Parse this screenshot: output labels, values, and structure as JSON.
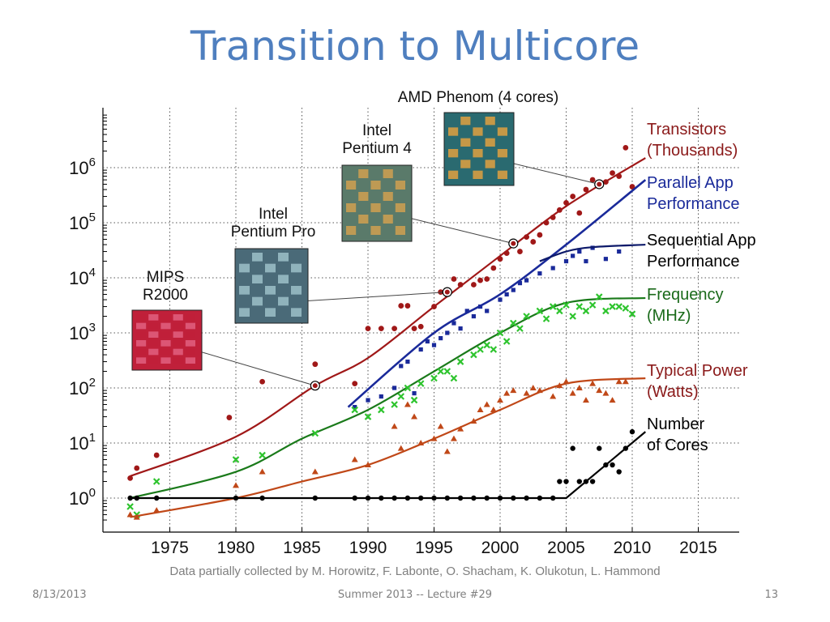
{
  "slide": {
    "title": "Transition to Multicore",
    "credit": "Data partially collected by M. Horowitz, F. Labonte, O. Shacham, K. Olukotun, L. Hammond",
    "footer_date": "8/13/2013",
    "footer_center": "Summer 2013 -- Lecture #29",
    "footer_page": "13"
  },
  "chips": [
    {
      "name_lines": [
        "MIPS",
        "R2000"
      ],
      "year": 1986,
      "transistors": 110,
      "die_color": "#c0203a",
      "die_color2": "#e06080"
    },
    {
      "name_lines": [
        "Intel",
        "Pentium Pro"
      ],
      "year": 1996,
      "transistors": 5500,
      "die_color": "#4a6a78",
      "die_color2": "#9cc0c8"
    },
    {
      "name_lines": [
        "Intel",
        "Pentium 4"
      ],
      "year": 2001,
      "transistors": 42000,
      "die_color": "#5a7a6a",
      "die_color2": "#d0a050"
    },
    {
      "name_lines": [
        "AMD Phenom (4 cores)"
      ],
      "year": 2007.5,
      "transistors": 500000,
      "die_color": "#2a6a70",
      "die_color2": "#e0a040"
    }
  ],
  "chart_data": {
    "type": "scatter",
    "xlabel": "",
    "ylabel": "",
    "xlim": [
      1970,
      2020
    ],
    "ylim": [
      0.3,
      2000000
    ],
    "yscale": "log",
    "x_ticks": [
      1975,
      1980,
      1985,
      1990,
      1995,
      2000,
      2005,
      2010,
      2015
    ],
    "y_ticks": [
      {
        "value": 1,
        "base": "10",
        "exp": "0"
      },
      {
        "value": 10,
        "base": "10",
        "exp": "1"
      },
      {
        "value": 100,
        "base": "10",
        "exp": "2"
      },
      {
        "value": 1000,
        "base": "10",
        "exp": "3"
      },
      {
        "value": 10000,
        "base": "10",
        "exp": "4"
      },
      {
        "value": 100000,
        "base": "10",
        "exp": "5"
      },
      {
        "value": 1000000,
        "base": "10",
        "exp": "6"
      }
    ],
    "grid": true,
    "legend_position": "right",
    "series": [
      {
        "key": "transistors",
        "name_lines": [
          "Transistors",
          "(Thousands)"
        ],
        "color": "#a01818",
        "text_color": "#8b1a1a",
        "marker": "circle",
        "trend": [
          [
            1972,
            2.5
          ],
          [
            1980,
            13
          ],
          [
            1986,
            110
          ],
          [
            1990,
            350
          ],
          [
            1995,
            3000
          ],
          [
            2000,
            25000
          ],
          [
            2005,
            200000
          ],
          [
            2011,
            1500000
          ]
        ],
        "points": [
          [
            1972,
            2.3
          ],
          [
            1972.5,
            3.5
          ],
          [
            1974,
            6
          ],
          [
            1979.5,
            29
          ],
          [
            1982,
            130
          ],
          [
            1986,
            270
          ],
          [
            1989,
            120
          ],
          [
            1990,
            1200
          ],
          [
            1991,
            1200
          ],
          [
            1992,
            1200
          ],
          [
            1992.5,
            3100
          ],
          [
            1993,
            3100
          ],
          [
            1993.5,
            1200
          ],
          [
            1994,
            1300
          ],
          [
            1995,
            3000
          ],
          [
            1995.5,
            5500
          ],
          [
            1996,
            5500
          ],
          [
            1996.5,
            9500
          ],
          [
            1997,
            7500
          ],
          [
            1998,
            7500
          ],
          [
            1998.5,
            9000
          ],
          [
            1999,
            9500
          ],
          [
            1999.5,
            15000
          ],
          [
            2000,
            22000
          ],
          [
            2000.5,
            28000
          ],
          [
            2001,
            42000
          ],
          [
            2001.5,
            30000
          ],
          [
            2002,
            55000
          ],
          [
            2002.5,
            45000
          ],
          [
            2003,
            60000
          ],
          [
            2003.5,
            100000
          ],
          [
            2004,
            125000
          ],
          [
            2004.5,
            170000
          ],
          [
            2005,
            230000
          ],
          [
            2005.5,
            300000
          ],
          [
            2006,
            150000
          ],
          [
            2006.5,
            400000
          ],
          [
            2007,
            600000
          ],
          [
            2007.5,
            500000
          ],
          [
            2008,
            550000
          ],
          [
            2008.5,
            800000
          ],
          [
            2009,
            700000
          ],
          [
            2009.5,
            2300000
          ],
          [
            2010,
            450000
          ]
        ]
      },
      {
        "key": "parallel",
        "name_lines": [
          "Parallel App",
          "Performance"
        ],
        "color": "#1a2a9a",
        "text_color": "#1a2a9a",
        "marker": "square",
        "trend": [
          [
            1988.5,
            45
          ],
          [
            1995,
            1000
          ],
          [
            2000,
            5000
          ],
          [
            2005,
            40000
          ],
          [
            2011,
            600000
          ]
        ],
        "points": [
          [
            1989,
            45
          ],
          [
            1990,
            60
          ],
          [
            1991,
            70
          ],
          [
            1992,
            100
          ],
          [
            1992.5,
            250
          ],
          [
            1993,
            300
          ],
          [
            1993.5,
            80
          ],
          [
            1994,
            500
          ],
          [
            1994.5,
            700
          ],
          [
            1995,
            600
          ],
          [
            1995.5,
            800
          ],
          [
            1996,
            1000
          ],
          [
            1996.5,
            1500
          ],
          [
            1997,
            1200
          ],
          [
            1997.5,
            2500
          ],
          [
            1998,
            2000
          ],
          [
            1998.5,
            3000
          ],
          [
            1999,
            2500
          ],
          [
            2000,
            4000
          ],
          [
            2000.5,
            5000
          ],
          [
            2001,
            6000
          ],
          [
            2001.5,
            8000
          ],
          [
            2002,
            9000
          ],
          [
            2003,
            12000
          ],
          [
            2004,
            15000
          ],
          [
            2005,
            20000
          ],
          [
            2005.5,
            25000
          ],
          [
            2006,
            30000
          ],
          [
            2006.5,
            20000
          ],
          [
            2007,
            35000
          ],
          [
            2008,
            22000
          ],
          [
            2009,
            30000
          ]
        ]
      },
      {
        "key": "sequential",
        "name_lines": [
          "Sequential App",
          "Performance"
        ],
        "color": "#0d1a6a",
        "text_color": "#000000",
        "marker": "none",
        "trend": [
          [
            2003,
            20000
          ],
          [
            2005,
            30000
          ],
          [
            2007,
            36000
          ],
          [
            2011,
            40000
          ]
        ],
        "points": []
      },
      {
        "key": "frequency",
        "name_lines": [
          "Frequency",
          "(MHz)"
        ],
        "color": "#1a7a1a",
        "text_color": "#1a6a1a",
        "marker": "x",
        "trend": [
          [
            1972,
            1
          ],
          [
            1980,
            3
          ],
          [
            1985,
            12
          ],
          [
            1990,
            40
          ],
          [
            1995,
            200
          ],
          [
            2000,
            1000
          ],
          [
            2005,
            3500
          ],
          [
            2011,
            4300
          ]
        ],
        "points": [
          [
            1972,
            0.7
          ],
          [
            1972.5,
            0.5
          ],
          [
            1974,
            2
          ],
          [
            1980,
            5
          ],
          [
            1982,
            6
          ],
          [
            1986,
            15
          ],
          [
            1989,
            40
          ],
          [
            1990,
            30
          ],
          [
            1991,
            40
          ],
          [
            1992,
            50
          ],
          [
            1992.5,
            70
          ],
          [
            1993,
            100
          ],
          [
            1993.5,
            60
          ],
          [
            1994,
            120
          ],
          [
            1995,
            150
          ],
          [
            1995.5,
            200
          ],
          [
            1996,
            200
          ],
          [
            1996.5,
            150
          ],
          [
            1997,
            300
          ],
          [
            1998,
            400
          ],
          [
            1998.5,
            500
          ],
          [
            1999,
            600
          ],
          [
            1999.5,
            500
          ],
          [
            2000,
            1000
          ],
          [
            2000.5,
            700
          ],
          [
            2001,
            1500
          ],
          [
            2001.5,
            1200
          ],
          [
            2002,
            2000
          ],
          [
            2003,
            2500
          ],
          [
            2003.5,
            1800
          ],
          [
            2004,
            3000
          ],
          [
            2004.5,
            2500
          ],
          [
            2005,
            3200
          ],
          [
            2005.5,
            2000
          ],
          [
            2006,
            3000
          ],
          [
            2006.5,
            2500
          ],
          [
            2007,
            3200
          ],
          [
            2007.5,
            4500
          ],
          [
            2008,
            2500
          ],
          [
            2008.5,
            3000
          ],
          [
            2009,
            3000
          ],
          [
            2009.5,
            2800
          ],
          [
            2010,
            2200
          ]
        ]
      },
      {
        "key": "power",
        "name_lines": [
          "Typical Power",
          "(Watts)"
        ],
        "color": "#c04818",
        "text_color": "#8b1a1a",
        "marker": "triangle",
        "trend": [
          [
            1972,
            0.45
          ],
          [
            1980,
            1
          ],
          [
            1985,
            2
          ],
          [
            1990,
            4
          ],
          [
            1995,
            12
          ],
          [
            2000,
            40
          ],
          [
            2005,
            120
          ],
          [
            2011,
            150
          ]
        ],
        "points": [
          [
            1972,
            0.5
          ],
          [
            1972.5,
            0.45
          ],
          [
            1974,
            0.6
          ],
          [
            1980,
            1.7
          ],
          [
            1982,
            3
          ],
          [
            1986,
            3
          ],
          [
            1989,
            5
          ],
          [
            1990,
            4
          ],
          [
            1992,
            20
          ],
          [
            1992.5,
            8
          ],
          [
            1993,
            50
          ],
          [
            1993.5,
            30
          ],
          [
            1994,
            10
          ],
          [
            1995,
            12
          ],
          [
            1995.5,
            20
          ],
          [
            1996,
            7
          ],
          [
            1996.5,
            12
          ],
          [
            1997,
            18
          ],
          [
            1998,
            25
          ],
          [
            1998.5,
            40
          ],
          [
            1999,
            50
          ],
          [
            1999.5,
            40
          ],
          [
            2000,
            60
          ],
          [
            2000.5,
            80
          ],
          [
            2001,
            90
          ],
          [
            2002,
            80
          ],
          [
            2002.5,
            100
          ],
          [
            2003,
            90
          ],
          [
            2004,
            70
          ],
          [
            2004.5,
            110
          ],
          [
            2005,
            130
          ],
          [
            2005.5,
            80
          ],
          [
            2006,
            100
          ],
          [
            2006.5,
            60
          ],
          [
            2007,
            120
          ],
          [
            2007.5,
            90
          ],
          [
            2008,
            80
          ],
          [
            2008.5,
            60
          ],
          [
            2009,
            130
          ],
          [
            2009.5,
            130
          ]
        ]
      },
      {
        "key": "cores",
        "name_lines": [
          "Number",
          "of Cores"
        ],
        "color": "#000000",
        "text_color": "#000000",
        "marker": "dot",
        "trend": [
          [
            1972,
            1
          ],
          [
            2005,
            1
          ],
          [
            2011,
            16
          ]
        ],
        "points": [
          [
            1972,
            1
          ],
          [
            1972.5,
            1
          ],
          [
            1974,
            1
          ],
          [
            1980,
            1
          ],
          [
            1982,
            1
          ],
          [
            1986,
            1
          ],
          [
            1989,
            1
          ],
          [
            1990,
            1
          ],
          [
            1991,
            1
          ],
          [
            1992,
            1
          ],
          [
            1993,
            1
          ],
          [
            1994,
            1
          ],
          [
            1995,
            1
          ],
          [
            1996,
            1
          ],
          [
            1997,
            1
          ],
          [
            1998,
            1
          ],
          [
            1999,
            1
          ],
          [
            2000,
            1
          ],
          [
            2001,
            1
          ],
          [
            2002,
            1
          ],
          [
            2003,
            1
          ],
          [
            2004,
            1
          ],
          [
            2004.5,
            2
          ],
          [
            2005,
            2
          ],
          [
            2005.5,
            8
          ],
          [
            2006,
            2
          ],
          [
            2006.5,
            2
          ],
          [
            2007,
            2
          ],
          [
            2007.5,
            8
          ],
          [
            2008,
            4
          ],
          [
            2008.5,
            4
          ],
          [
            2009,
            3
          ],
          [
            2009.5,
            8
          ],
          [
            2010,
            16
          ]
        ]
      }
    ]
  }
}
